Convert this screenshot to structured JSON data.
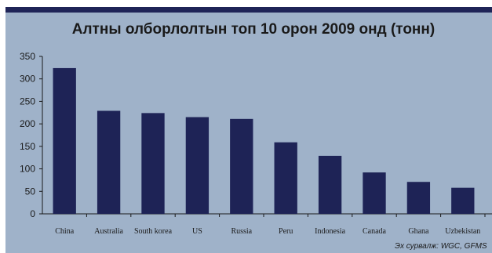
{
  "chart_data": {
    "type": "bar",
    "title": "Алтны олборлолтын топ 10 орон 2009 онд (тонн)",
    "source": "Эх сурвалж: WGC, GFMS",
    "categories": [
      "China",
      "Australia",
      "South korea",
      "US",
      "Russia",
      "Peru",
      "Indonesia",
      "Canada",
      "Ghana",
      "Uzbekistan"
    ],
    "values": [
      324,
      229,
      224,
      215,
      211,
      159,
      129,
      92,
      71,
      58
    ],
    "ylim": [
      0,
      350
    ],
    "yticks": [
      0,
      50,
      100,
      150,
      200,
      250,
      300,
      350
    ],
    "bar_color": "#1e2356",
    "background_color": "#9fb2c9",
    "band_color": "#1f2457",
    "grid": false,
    "legend": "none"
  }
}
